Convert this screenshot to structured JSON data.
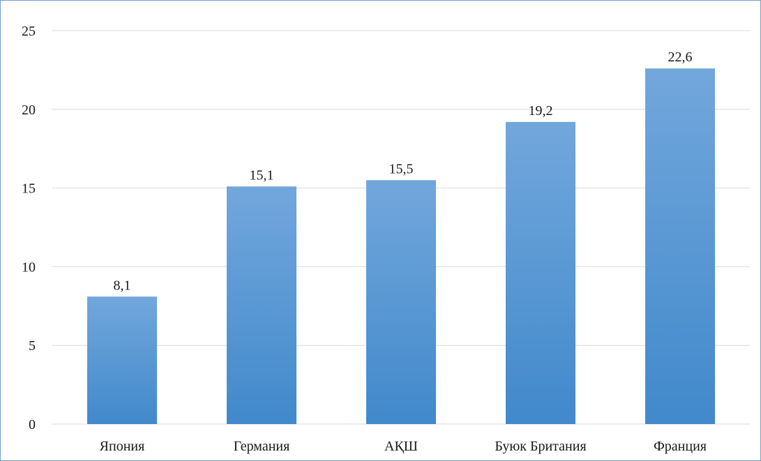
{
  "chart_data": {
    "type": "bar",
    "categories": [
      "Япония",
      "Германия",
      "АҚШ",
      "Буюк Британия",
      "Франция"
    ],
    "values": [
      8.1,
      15.1,
      15.5,
      19.2,
      22.6
    ],
    "data_labels": [
      "8,1",
      "15,1",
      "15,5",
      "19,2",
      "22,6"
    ],
    "title": "",
    "xlabel": "",
    "ylabel": "",
    "ylim": [
      0,
      25
    ],
    "yticks": [
      0,
      5,
      10,
      15,
      20,
      25
    ],
    "ytick_labels": [
      "0",
      "5",
      "10",
      "15",
      "20",
      "25"
    ],
    "grid": true,
    "legend": "none",
    "colors": {
      "bar_top": "#72a7dc",
      "bar_bottom": "#4189cb",
      "grid": "#d9d9d9",
      "frame": "#6e9fd0"
    }
  }
}
